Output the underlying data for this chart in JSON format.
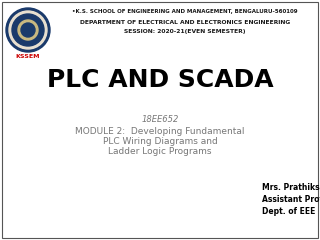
{
  "bg_color": "#ffffff",
  "header_line1": "•K.S. SCHOOL OF ENGINEERING AND MANAGEMENT, BENGALURU-560109",
  "header_line2": "DEPARTMENT OF ELECTRICAL AND ELECTRONICS ENGINEERING",
  "header_line3": "SESSION: 2020-21(EVEN SEMESTER)",
  "main_title": "PLC AND SCADA",
  "course_code": "18EE652",
  "module_line1": "MODULE 2:  Developing Fundamental",
  "module_line2": "PLC Wiring Diagrams and",
  "module_line3": "Ladder Logic Programs",
  "prof_line1": "Mrs. Prathiksha",
  "prof_line2": "Assistant Professor",
  "prof_line3": "Dept. of EEE",
  "header_color": "#1a1a1a",
  "title_color": "#000000",
  "module_color": "#777777",
  "prof_color": "#000000",
  "border_color": "#555555",
  "logo_outer": "#1a3a6b",
  "logo_inner": "#e8e0d0",
  "logo_mid": "#1a3a6b",
  "kssem_red": "#cc0000"
}
